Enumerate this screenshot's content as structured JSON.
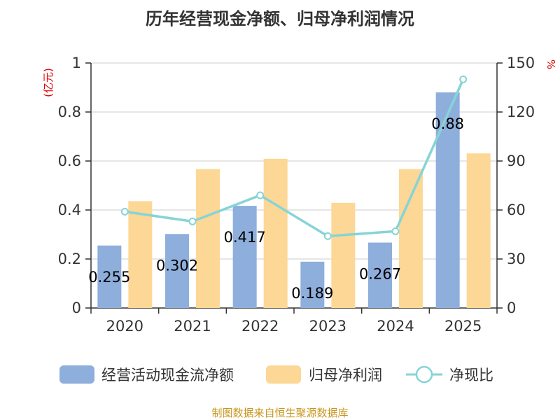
{
  "chart_data": {
    "type": "bar+line",
    "title": "历年经营现金净额、归母净利润情况",
    "categories": [
      "2020",
      "2021",
      "2022",
      "2023",
      "2024",
      "2025"
    ],
    "y_left": {
      "unit_label": "(亿元)",
      "lim": [
        0,
        1
      ],
      "ticks": [
        "0",
        "0.2",
        "0.4",
        "0.6",
        "0.8",
        "1"
      ],
      "tick_values": [
        0,
        0.2,
        0.4,
        0.6,
        0.8,
        1
      ]
    },
    "y_right": {
      "unit_label": "%",
      "lim": [
        0,
        150
      ],
      "ticks": [
        "0",
        "30",
        "60",
        "90",
        "120",
        "150"
      ],
      "tick_values": [
        0,
        30,
        60,
        90,
        120,
        150
      ]
    },
    "series": [
      {
        "name": "经营活动现金流净额",
        "type": "bar",
        "axis": "left",
        "color": "#8eaedc",
        "values": [
          0.255,
          0.302,
          0.417,
          0.189,
          0.267,
          0.88
        ],
        "labels": [
          "0.255",
          "0.302",
          "0.417",
          "0.189",
          "0.267",
          "0.88"
        ]
      },
      {
        "name": "归母净利润",
        "type": "bar",
        "axis": "left",
        "color": "#fdd795",
        "values": [
          0.436,
          0.567,
          0.609,
          0.429,
          0.567,
          0.631
        ]
      },
      {
        "name": "净现比",
        "type": "line",
        "axis": "right",
        "color": "#86d4d6",
        "values": [
          59,
          53,
          69,
          44,
          47,
          140
        ]
      }
    ],
    "grid": true,
    "legend": "bottom"
  },
  "source": "制图数据来自恒生聚源数据库"
}
